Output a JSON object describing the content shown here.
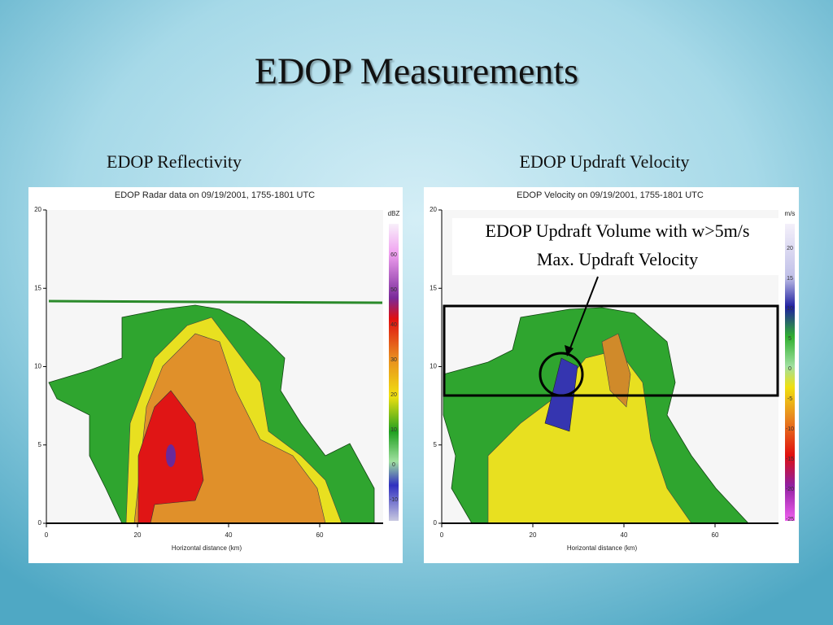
{
  "title": "EDOP Measurements",
  "left": {
    "caption": "EDOP Reflectivity",
    "plot_title": "EDOP Radar data on 09/19/2001, 1755-1801 UTC",
    "x_label": "Horizontal distance (km)",
    "x_ticks": [
      "0",
      "20",
      "40",
      "60"
    ],
    "y_ticks": [
      "0",
      "5",
      "10",
      "15",
      "20"
    ],
    "colorbar_unit": "dBZ",
    "colorbar_ticks": [
      "60",
      "50",
      "40",
      "30",
      "20",
      "10",
      "0",
      "-10"
    ]
  },
  "right": {
    "caption": "EDOP Updraft Velocity",
    "plot_title": "EDOP Velocity on 09/19/2001, 1755-1801 UTC",
    "x_label": "Horizontal distance (km)",
    "x_ticks": [
      "0",
      "20",
      "40",
      "60"
    ],
    "y_ticks": [
      "0",
      "5",
      "10",
      "15",
      "20"
    ],
    "colorbar_unit": "m/s",
    "colorbar_ticks": [
      "20",
      "15",
      "10",
      "5",
      "0",
      "-5",
      "-10",
      "-15",
      "-20",
      "-25"
    ],
    "annotation_lines": [
      "EDOP Updraft Volume with w>5m/s",
      "Max. Updraft Velocity"
    ]
  }
}
